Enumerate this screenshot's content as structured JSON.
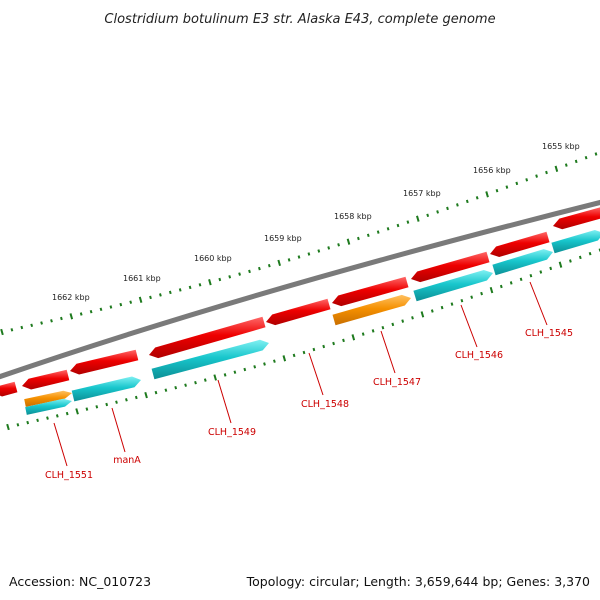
{
  "title": "Clostridium botulinum E3 str. Alaska E43, complete genome",
  "footer": {
    "accession": "Accession: NC_010723",
    "summary": "Topology: circular; Length: 3,659,644 bp; Genes: 3,370"
  },
  "colors": {
    "backbone": "#7a7a7a",
    "tick": "#1e7a1e",
    "forward_gene": "#e60000",
    "reverse_gene": "#17c3c8",
    "rna_gene": "#ff9900",
    "label": "#cc0000"
  },
  "ruler": {
    "labels": [
      "1655 kbp",
      "1656 kbp",
      "1657 kbp",
      "1658 kbp",
      "1659 kbp",
      "1660 kbp",
      "1661 kbp",
      "1662 kbp"
    ]
  },
  "gene_labels": [
    "CLH_1545",
    "CLH_1546",
    "CLH_1547",
    "CLH_1548",
    "CLH_1549",
    "manA",
    "CLH_1551"
  ]
}
